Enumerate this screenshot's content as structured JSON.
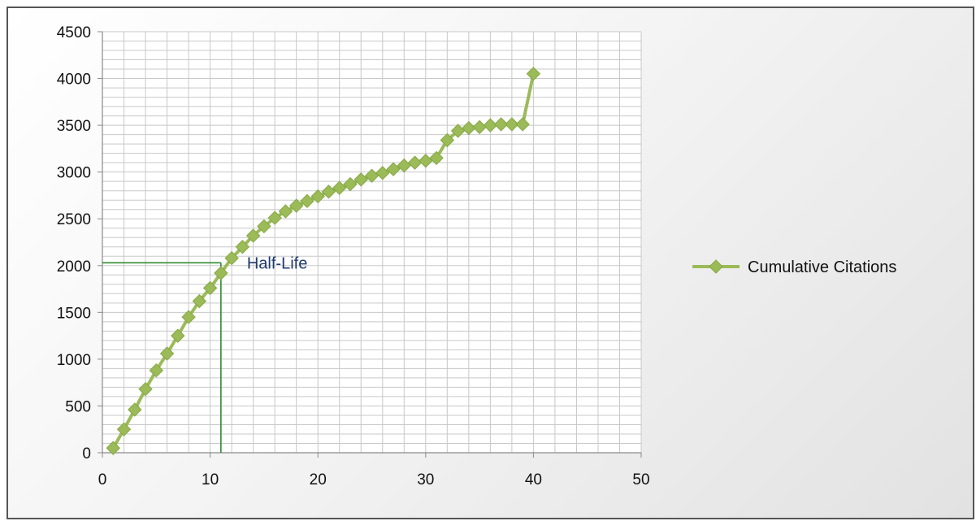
{
  "chart_data": {
    "type": "line",
    "title": "",
    "xlabel": "",
    "ylabel": "",
    "xlim": [
      0,
      50
    ],
    "ylim": [
      0,
      4500
    ],
    "xticks": [
      0,
      10,
      20,
      30,
      40,
      50
    ],
    "yticks": [
      0,
      500,
      1000,
      1500,
      2000,
      2500,
      3000,
      3500,
      4000,
      4500
    ],
    "grid": true,
    "legend_position": "right",
    "series": [
      {
        "name": "Cumulative Citations",
        "color": "#9bbb59",
        "marker": "diamond",
        "x": [
          1,
          2,
          3,
          4,
          5,
          6,
          7,
          8,
          9,
          10,
          11,
          12,
          13,
          14,
          15,
          16,
          17,
          18,
          19,
          20,
          21,
          22,
          23,
          24,
          25,
          26,
          27,
          28,
          29,
          30,
          31,
          32,
          33,
          34,
          35,
          36,
          37,
          38,
          39,
          40
        ],
        "y": [
          50,
          250,
          460,
          680,
          880,
          1060,
          1250,
          1450,
          1620,
          1760,
          1920,
          2080,
          2200,
          2320,
          2420,
          2510,
          2580,
          2640,
          2690,
          2740,
          2790,
          2830,
          2870,
          2920,
          2960,
          2990,
          3030,
          3070,
          3100,
          3120,
          3150,
          3340,
          3440,
          3470,
          3480,
          3500,
          3510,
          3510,
          3510,
          4050
        ]
      }
    ],
    "annotations": [
      {
        "text": "Half-Life",
        "x": 11,
        "y": 2030,
        "color": "#2e8b2e"
      }
    ]
  }
}
